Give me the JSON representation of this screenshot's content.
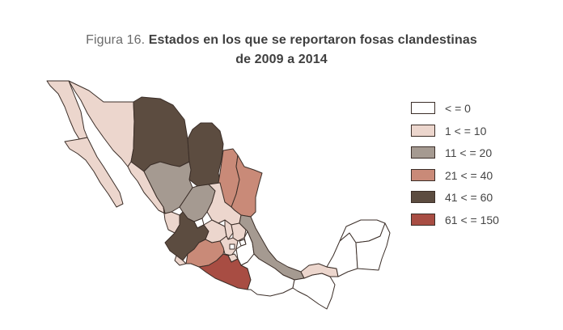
{
  "title": {
    "prefix": "Figura 16.",
    "line1": "Estados en los que se reportaron fosas clandestinas",
    "line2": "de 2009 a 2014"
  },
  "colors": {
    "0": "#ffffff",
    "1-10": "#ecd6cd",
    "11-20": "#a59a91",
    "21-40": "#c98a78",
    "41-60": "#5c4c40",
    "61-150": "#a84d43"
  },
  "legend": [
    {
      "key": "0",
      "label": "< = 0"
    },
    {
      "key": "1-10",
      "label": "1 < = 10"
    },
    {
      "key": "11-20",
      "label": "11 < = 20"
    },
    {
      "key": "21-40",
      "label": "21 < = 40"
    },
    {
      "key": "41-60",
      "label": "41 < = 60"
    },
    {
      "key": "61-150",
      "label": "61 < = 150"
    }
  ],
  "states": [
    {
      "name": "Baja California",
      "class": "1-10"
    },
    {
      "name": "Baja California Sur",
      "class": "1-10"
    },
    {
      "name": "Sonora",
      "class": "1-10"
    },
    {
      "name": "Chihuahua",
      "class": "41-60"
    },
    {
      "name": "Coahuila",
      "class": "41-60"
    },
    {
      "name": "Nuevo León",
      "class": "21-40"
    },
    {
      "name": "Tamaulipas",
      "class": "21-40"
    },
    {
      "name": "Sinaloa",
      "class": "1-10"
    },
    {
      "name": "Durango",
      "class": "11-20"
    },
    {
      "name": "Zacatecas",
      "class": "11-20"
    },
    {
      "name": "Nayarit",
      "class": "1-10"
    },
    {
      "name": "San Luis Potosí",
      "class": "1-10"
    },
    {
      "name": "Aguascalientes",
      "class": "0"
    },
    {
      "name": "Jalisco",
      "class": "41-60"
    },
    {
      "name": "Colima",
      "class": "1-10"
    },
    {
      "name": "Michoacán",
      "class": "21-40"
    },
    {
      "name": "Guanajuato",
      "class": "1-10"
    },
    {
      "name": "Querétaro",
      "class": "1-10"
    },
    {
      "name": "Hidalgo",
      "class": "1-10"
    },
    {
      "name": "Estado de México",
      "class": "1-10"
    },
    {
      "name": "Ciudad de México",
      "class": "0"
    },
    {
      "name": "Morelos",
      "class": "1-10"
    },
    {
      "name": "Tlaxcala",
      "class": "0"
    },
    {
      "name": "Puebla",
      "class": "0"
    },
    {
      "name": "Veracruz",
      "class": "11-20"
    },
    {
      "name": "Guerrero",
      "class": "61-150"
    },
    {
      "name": "Oaxaca",
      "class": "0"
    },
    {
      "name": "Chiapas",
      "class": "0"
    },
    {
      "name": "Tabasco",
      "class": "1-10"
    },
    {
      "name": "Campeche",
      "class": "0"
    },
    {
      "name": "Yucatán",
      "class": "0"
    },
    {
      "name": "Quintana Roo",
      "class": "0"
    }
  ]
}
